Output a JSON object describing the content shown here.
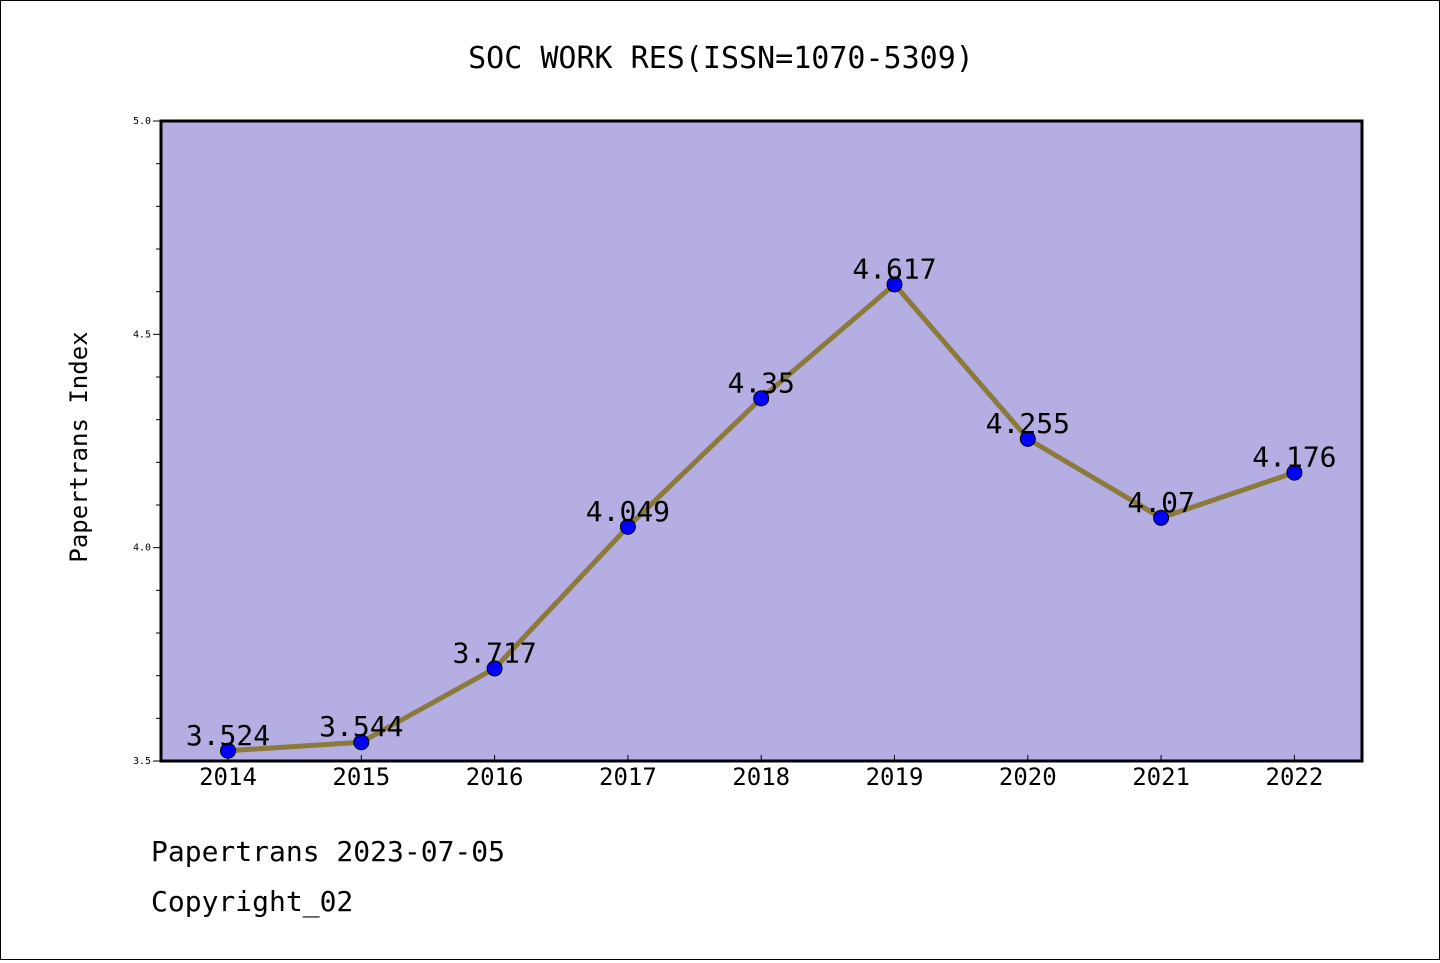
{
  "footer": {
    "line1": "Papertrans 2023-07-05",
    "line2": "Copyright_02"
  },
  "chart_data": {
    "type": "line",
    "title": "SOC WORK RES(ISSN=1070-5309)",
    "xlabel": "",
    "ylabel": "Papertrans Index",
    "categories": [
      "2014",
      "2015",
      "2016",
      "2017",
      "2018",
      "2019",
      "2020",
      "2021",
      "2022"
    ],
    "values": [
      3.524,
      3.544,
      3.717,
      4.049,
      4.35,
      4.617,
      4.255,
      4.07,
      4.176
    ],
    "data_labels": [
      "3.524",
      "3.544",
      "3.717",
      "4.049",
      "4.35",
      "4.617",
      "4.255",
      "4.07",
      "4.176"
    ],
    "ylim": [
      3.5,
      5.0
    ],
    "yticks": [
      "3.5",
      "4.0",
      "4.5",
      "5.0"
    ],
    "grid": false,
    "legend": "none",
    "colors": {
      "plot_background": "#b4aee2",
      "line": "#8b7a3a",
      "marker": "#0000ff"
    }
  }
}
